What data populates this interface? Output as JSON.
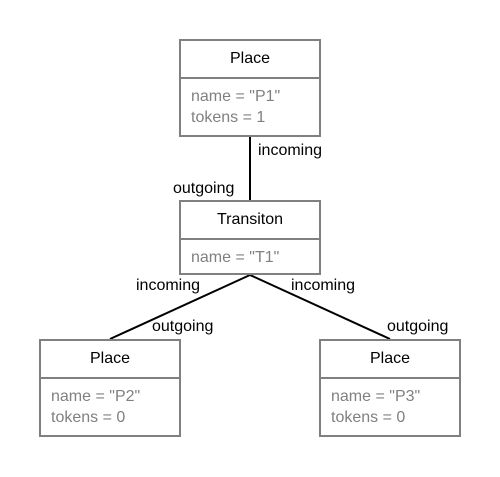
{
  "nodes": {
    "p1": {
      "title": "Place",
      "attrs": [
        "name = \"P1\"",
        "tokens = 1"
      ]
    },
    "t1": {
      "title": "Transiton",
      "attrs": [
        "name = \"T1\""
      ]
    },
    "p2": {
      "title": "Place",
      "attrs": [
        "name = \"P2\"",
        "tokens = 0"
      ]
    },
    "p3": {
      "title": "Place",
      "attrs": [
        "name = \"P3\"",
        "tokens = 0"
      ]
    }
  },
  "edges": [
    {
      "from": "t1",
      "to": "p1",
      "source_label": "outgoing",
      "target_label": "incoming"
    },
    {
      "from": "p2",
      "to": "t1",
      "source_label": "outgoing",
      "target_label": "incoming"
    },
    {
      "from": "p3",
      "to": "t1",
      "source_label": "outgoing",
      "target_label": "incoming"
    }
  ],
  "colors": {
    "border": "#808080",
    "attribute_text": "#808080",
    "title_text": "#000000",
    "edge": "#000000"
  }
}
